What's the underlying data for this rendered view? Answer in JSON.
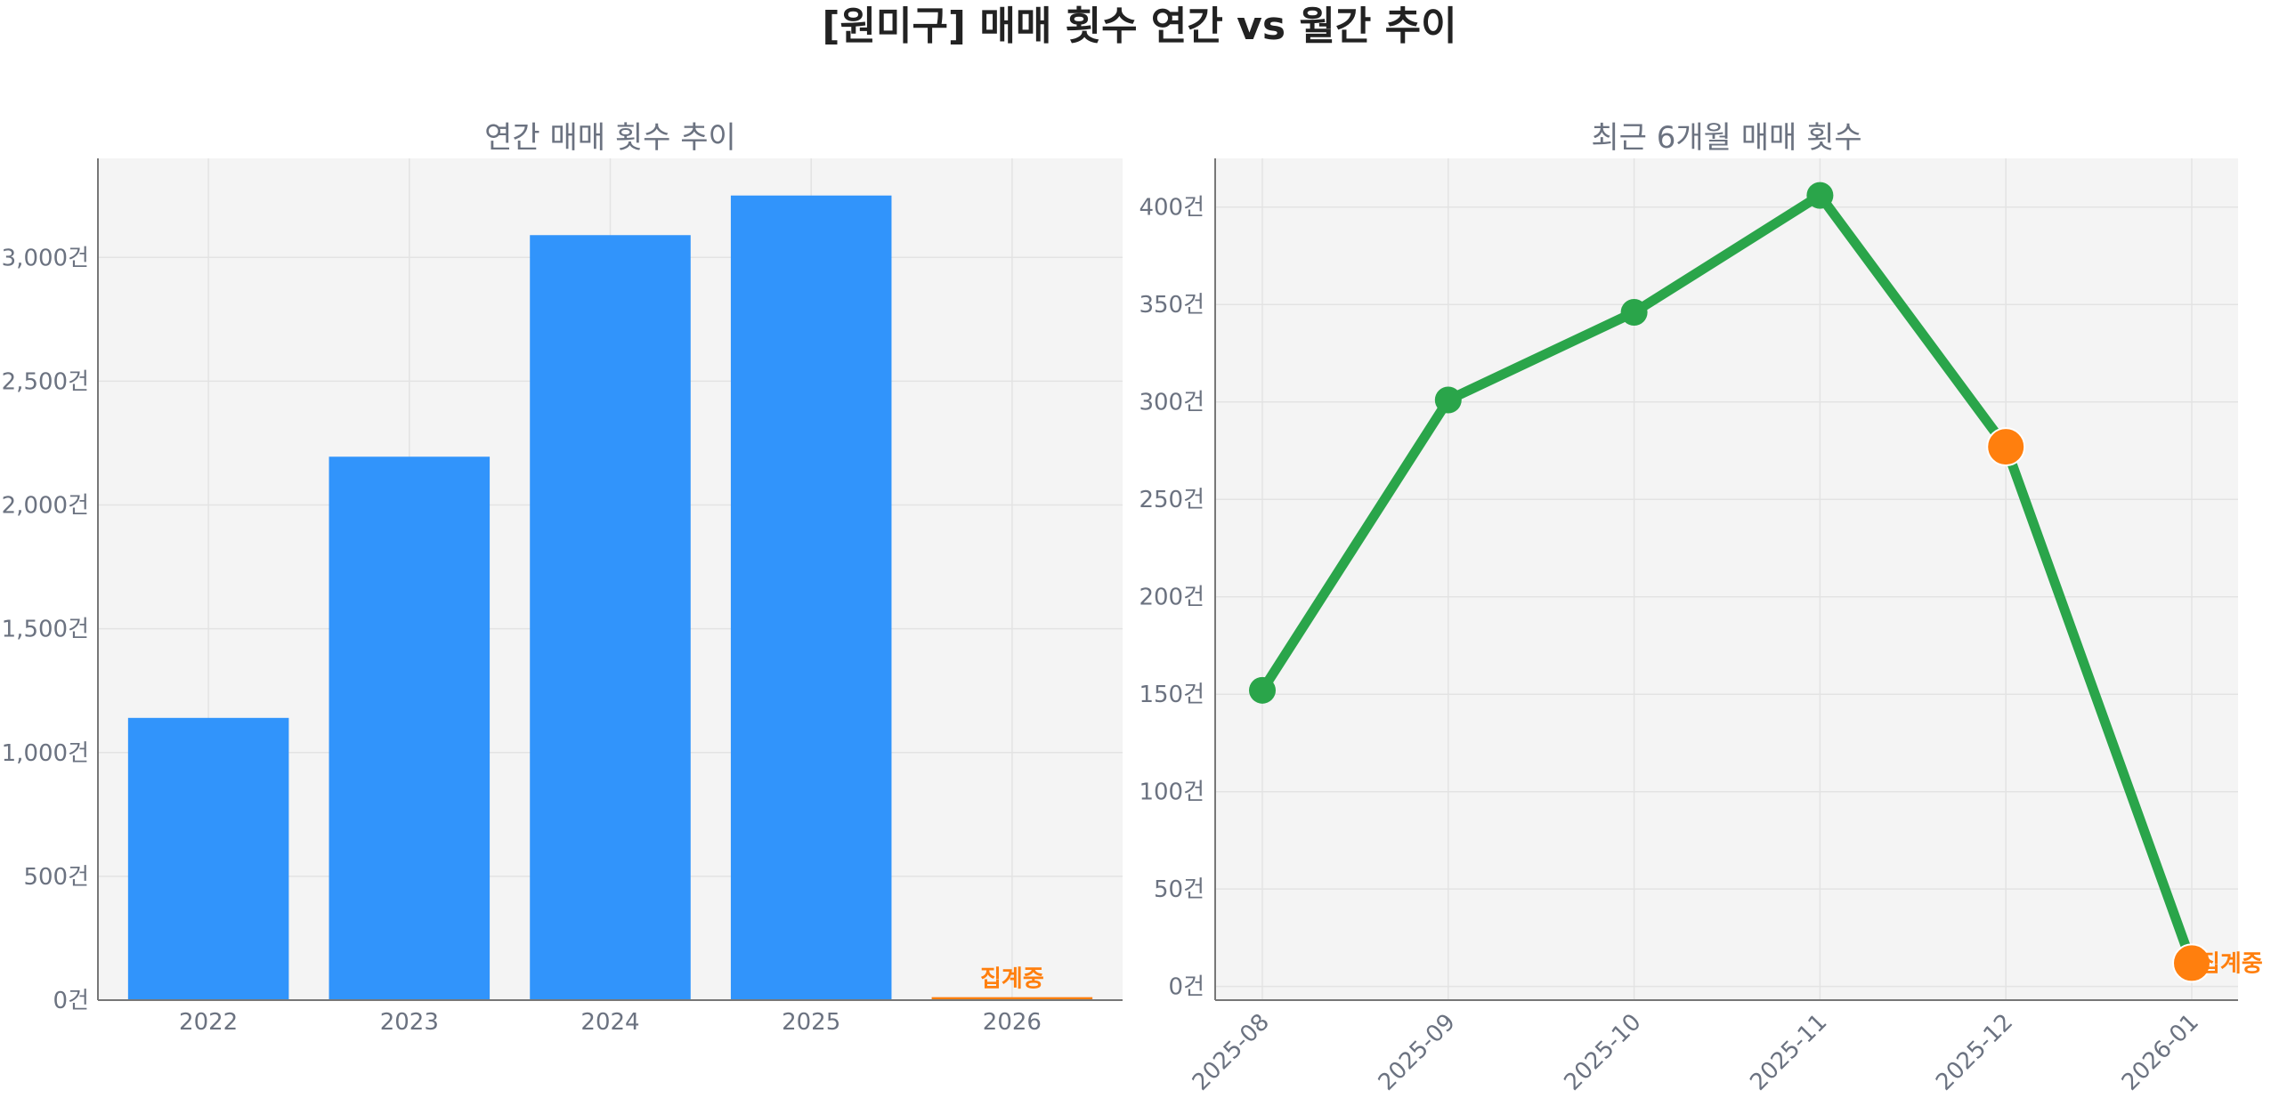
{
  "title": "[원미구] 매매 횟수 연간 vs 월간 추이",
  "colors": {
    "bar": "#3194fb",
    "line": "#2aa54a",
    "highlight": "#ff7f0e",
    "note": "#ff7f0e"
  },
  "chart_data": [
    {
      "type": "bar",
      "title": "연간 매매 횟수 추이",
      "categories": [
        "2022",
        "2023",
        "2024",
        "2025",
        "2026"
      ],
      "values": [
        1140,
        2195,
        3090,
        3250,
        12
      ],
      "ylim": [
        0,
        3400
      ],
      "yticks": [
        0,
        500,
        1000,
        1500,
        2000,
        2500,
        3000
      ],
      "ytick_labels": [
        "0건",
        "500건",
        "1,000건",
        "1,500건",
        "2,000건",
        "2,500건",
        "3,000건"
      ],
      "highlight_index": 4,
      "annotation": {
        "index": 4,
        "text": "집계중"
      },
      "grid": true
    },
    {
      "type": "line",
      "title": "최근 6개월 매매 횟수",
      "categories": [
        "2025-08",
        "2025-09",
        "2025-10",
        "2025-11",
        "2025-12",
        "2026-01"
      ],
      "values": [
        152,
        301,
        346,
        406,
        277,
        12
      ],
      "ylim": [
        -7,
        425
      ],
      "yticks": [
        0,
        50,
        100,
        150,
        200,
        250,
        300,
        350,
        400
      ],
      "ytick_labels": [
        "0건",
        "50건",
        "100건",
        "150건",
        "200건",
        "250건",
        "300건",
        "350건",
        "400건"
      ],
      "highlight_indices": [
        4,
        5
      ],
      "annotation": {
        "index": 5,
        "text": "집계중"
      },
      "grid": true
    }
  ]
}
